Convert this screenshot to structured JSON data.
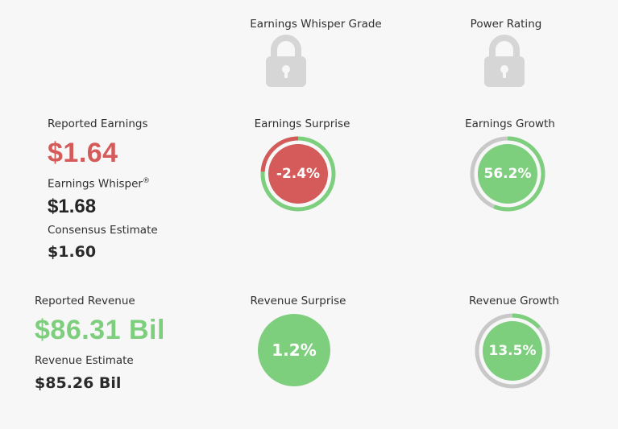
{
  "headers": {
    "whisper_grade": "Earnings Whisper Grade",
    "power_rating": "Power Rating"
  },
  "icons": {
    "whisper_grade_lock": "lock-icon",
    "power_rating_lock": "lock-icon"
  },
  "earnings": {
    "reported_label": "Reported Earnings",
    "reported_value": "$1.64",
    "whisper_label": "Earnings Whisper",
    "whisper_mark": "®",
    "whisper_value": "$1.68",
    "consensus_label": "Consensus Estimate",
    "consensus_value": "$1.60",
    "surprise_label": "Earnings Surprise",
    "surprise_value": "-2.4%",
    "surprise_percent": -2.4,
    "growth_label": "Earnings Growth",
    "growth_value": "56.2%",
    "growth_percent": 56.2
  },
  "revenue": {
    "reported_label": "Reported Revenue",
    "reported_value": "$86.31 Bil",
    "estimate_label": "Revenue Estimate",
    "estimate_value": "$85.26 Bil",
    "surprise_label": "Revenue Surprise",
    "surprise_value": "1.2%",
    "surprise_percent": 1.2,
    "growth_label": "Revenue Growth",
    "growth_value": "13.5%",
    "growth_percent": 13.5
  },
  "colors": {
    "positive": "#7dce7d",
    "negative": "#d55a5a",
    "track": "#c8c8c8",
    "lock": "#d6d6d6",
    "background": "#f7f7f7"
  }
}
